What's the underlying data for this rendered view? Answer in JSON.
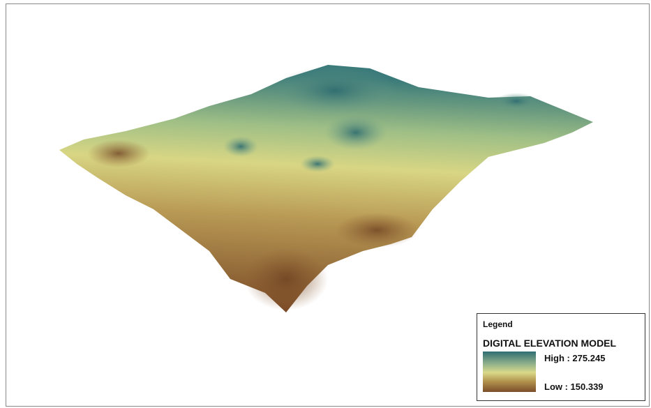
{
  "legend": {
    "title": "Legend",
    "layer": "DIGITAL ELEVATION MODEL",
    "high": "High : 275.245",
    "low": "Low : 150.339"
  }
}
